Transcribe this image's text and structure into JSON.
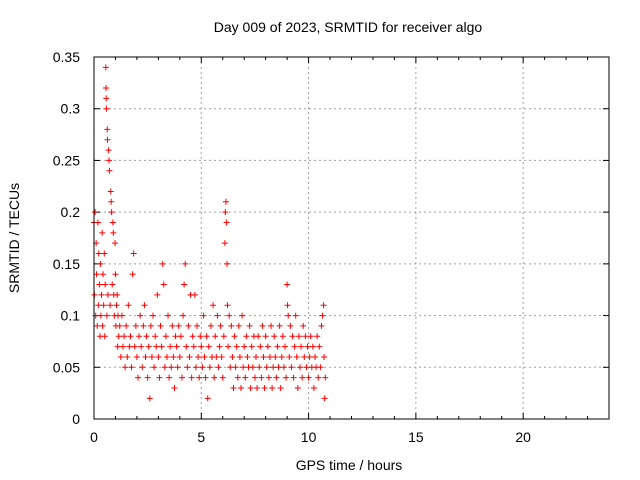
{
  "chart_data": {
    "type": "scatter",
    "title": "Day 009 of 2023, SRMTID for receiver algo",
    "xlabel": "GPS time / hours",
    "ylabel": "SRMTID / TECUs",
    "xlim": [
      0,
      24
    ],
    "ylim": [
      0,
      0.35
    ],
    "x_ticks": [
      0,
      5,
      10,
      15,
      20
    ],
    "y_ticks": [
      0,
      0.05,
      0.1,
      0.15,
      0.2,
      0.25,
      0.3,
      0.35
    ],
    "x_tick_labels": [
      "0",
      "5",
      "10",
      "15",
      "20"
    ],
    "y_tick_labels": [
      "0",
      "0.05",
      "0.1",
      "0.15",
      "0.2",
      "0.25",
      "0.3",
      "0.35"
    ],
    "grid": true,
    "marker": "+",
    "marker_color": "#ff0000",
    "series": [
      {
        "points": [
          [
            0.0,
            0.19
          ],
          [
            0.02,
            0.12
          ],
          [
            0.05,
            0.2
          ],
          [
            0.08,
            0.1
          ],
          [
            0.1,
            0.17
          ],
          [
            0.12,
            0.14
          ],
          [
            0.15,
            0.09
          ],
          [
            0.18,
            0.19
          ],
          [
            0.2,
            0.11
          ],
          [
            0.22,
            0.16
          ],
          [
            0.25,
            0.13
          ],
          [
            0.28,
            0.08
          ],
          [
            0.3,
            0.15
          ],
          [
            0.32,
            0.1
          ],
          [
            0.35,
            0.12
          ],
          [
            0.38,
            0.18
          ],
          [
            0.4,
            0.09
          ],
          [
            0.42,
            0.14
          ],
          [
            0.45,
            0.11
          ],
          [
            0.48,
            0.16
          ],
          [
            0.5,
            0.08
          ],
          [
            0.52,
            0.13
          ],
          [
            0.55,
            0.34
          ],
          [
            0.56,
            0.32
          ],
          [
            0.57,
            0.31
          ],
          [
            0.58,
            0.3
          ],
          [
            0.6,
            0.1
          ],
          [
            0.62,
            0.28
          ],
          [
            0.63,
            0.27
          ],
          [
            0.65,
            0.12
          ],
          [
            0.68,
            0.26
          ],
          [
            0.7,
            0.25
          ],
          [
            0.72,
            0.24
          ],
          [
            0.75,
            0.11
          ],
          [
            0.78,
            0.22
          ],
          [
            0.8,
            0.21
          ],
          [
            0.82,
            0.2
          ],
          [
            0.85,
            0.13
          ],
          [
            0.88,
            0.19
          ],
          [
            0.9,
            0.18
          ],
          [
            0.92,
            0.12
          ],
          [
            0.95,
            0.1
          ],
          [
            0.98,
            0.17
          ],
          [
            1.0,
            0.14
          ],
          [
            1.02,
            0.09
          ],
          [
            1.05,
            0.11
          ],
          [
            1.08,
            0.12
          ],
          [
            1.1,
            0.07
          ],
          [
            1.12,
            0.1
          ],
          [
            1.15,
            0.08
          ],
          [
            1.2,
            0.09
          ],
          [
            1.25,
            0.06
          ],
          [
            1.3,
            0.1
          ],
          [
            1.35,
            0.07
          ],
          [
            1.4,
            0.08
          ],
          [
            1.45,
            0.05
          ],
          [
            1.5,
            0.09
          ],
          [
            1.55,
            0.06
          ],
          [
            1.6,
            0.11
          ],
          [
            1.65,
            0.07
          ],
          [
            1.7,
            0.08
          ],
          [
            1.75,
            0.05
          ],
          [
            1.8,
            0.14
          ],
          [
            1.85,
            0.16
          ],
          [
            1.9,
            0.07
          ],
          [
            1.95,
            0.09
          ],
          [
            2.0,
            0.06
          ],
          [
            2.05,
            0.04
          ],
          [
            2.1,
            0.08
          ],
          [
            2.15,
            0.1
          ],
          [
            2.2,
            0.07
          ],
          [
            2.25,
            0.05
          ],
          [
            2.3,
            0.09
          ],
          [
            2.35,
            0.11
          ],
          [
            2.4,
            0.06
          ],
          [
            2.45,
            0.08
          ],
          [
            2.5,
            0.04
          ],
          [
            2.55,
            0.07
          ],
          [
            2.6,
            0.02
          ],
          [
            2.65,
            0.09
          ],
          [
            2.7,
            0.06
          ],
          [
            2.75,
            0.1
          ],
          [
            2.8,
            0.05
          ],
          [
            2.85,
            0.08
          ],
          [
            2.9,
            0.07
          ],
          [
            2.95,
            0.12
          ],
          [
            3.0,
            0.06
          ],
          [
            3.05,
            0.04
          ],
          [
            3.1,
            0.09
          ],
          [
            3.15,
            0.07
          ],
          [
            3.2,
            0.15
          ],
          [
            3.25,
            0.13
          ],
          [
            3.3,
            0.05
          ],
          [
            3.35,
            0.08
          ],
          [
            3.4,
            0.06
          ],
          [
            3.45,
            0.1
          ],
          [
            3.5,
            0.04
          ],
          [
            3.55,
            0.07
          ],
          [
            3.6,
            0.05
          ],
          [
            3.65,
            0.09
          ],
          [
            3.7,
            0.06
          ],
          [
            3.75,
            0.03
          ],
          [
            3.8,
            0.08
          ],
          [
            3.85,
            0.07
          ],
          [
            3.9,
            0.05
          ],
          [
            3.95,
            0.09
          ],
          [
            4.0,
            0.06
          ],
          [
            4.05,
            0.08
          ],
          [
            4.1,
            0.04
          ],
          [
            4.15,
            0.1
          ],
          [
            4.2,
            0.13
          ],
          [
            4.25,
            0.15
          ],
          [
            4.3,
            0.07
          ],
          [
            4.35,
            0.05
          ],
          [
            4.4,
            0.09
          ],
          [
            4.45,
            0.06
          ],
          [
            4.5,
            0.12
          ],
          [
            4.55,
            0.04
          ],
          [
            4.6,
            0.08
          ],
          [
            4.65,
            0.07
          ],
          [
            4.7,
            0.12
          ],
          [
            4.75,
            0.05
          ],
          [
            4.8,
            0.09
          ],
          [
            4.85,
            0.06
          ],
          [
            4.9,
            0.04
          ],
          [
            4.95,
            0.08
          ],
          [
            5.0,
            0.07
          ],
          [
            5.05,
            0.05
          ],
          [
            5.1,
            0.1
          ],
          [
            5.15,
            0.06
          ],
          [
            5.2,
            0.04
          ],
          [
            5.25,
            0.08
          ],
          [
            5.3,
            0.02
          ],
          [
            5.35,
            0.07
          ],
          [
            5.4,
            0.05
          ],
          [
            5.45,
            0.09
          ],
          [
            5.5,
            0.06
          ],
          [
            5.55,
            0.11
          ],
          [
            5.6,
            0.04
          ],
          [
            5.65,
            0.08
          ],
          [
            5.7,
            0.06
          ],
          [
            5.75,
            0.1
          ],
          [
            5.8,
            0.05
          ],
          [
            5.85,
            0.07
          ],
          [
            5.9,
            0.09
          ],
          [
            5.95,
            0.06
          ],
          [
            6.0,
            0.04
          ],
          [
            6.05,
            0.08
          ],
          [
            6.1,
            0.17
          ],
          [
            6.12,
            0.2
          ],
          [
            6.15,
            0.21
          ],
          [
            6.18,
            0.19
          ],
          [
            6.2,
            0.15
          ],
          [
            6.22,
            0.11
          ],
          [
            6.25,
            0.07
          ],
          [
            6.3,
            0.1
          ],
          [
            6.35,
            0.05
          ],
          [
            6.4,
            0.09
          ],
          [
            6.45,
            0.06
          ],
          [
            6.5,
            0.03
          ],
          [
            6.55,
            0.08
          ],
          [
            6.6,
            0.05
          ],
          [
            6.65,
            0.07
          ],
          [
            6.7,
            0.04
          ],
          [
            6.75,
            0.09
          ],
          [
            6.8,
            0.06
          ],
          [
            6.85,
            0.03
          ],
          [
            6.9,
            0.1
          ],
          [
            6.95,
            0.05
          ],
          [
            7.0,
            0.07
          ],
          [
            7.05,
            0.04
          ],
          [
            7.1,
            0.08
          ],
          [
            7.15,
            0.06
          ],
          [
            7.2,
            0.05
          ],
          [
            7.25,
            0.09
          ],
          [
            7.3,
            0.03
          ],
          [
            7.35,
            0.07
          ],
          [
            7.4,
            0.05
          ],
          [
            7.45,
            0.08
          ],
          [
            7.5,
            0.04
          ],
          [
            7.55,
            0.06
          ],
          [
            7.6,
            0.03
          ],
          [
            7.65,
            0.08
          ],
          [
            7.7,
            0.05
          ],
          [
            7.75,
            0.07
          ],
          [
            7.8,
            0.04
          ],
          [
            7.85,
            0.09
          ],
          [
            7.9,
            0.06
          ],
          [
            7.95,
            0.03
          ],
          [
            8.0,
            0.08
          ],
          [
            8.05,
            0.05
          ],
          [
            8.1,
            0.07
          ],
          [
            8.15,
            0.04
          ],
          [
            8.2,
            0.06
          ],
          [
            8.25,
            0.09
          ],
          [
            8.3,
            0.03
          ],
          [
            8.35,
            0.05
          ],
          [
            8.4,
            0.08
          ],
          [
            8.45,
            0.06
          ],
          [
            8.5,
            0.04
          ],
          [
            8.55,
            0.07
          ],
          [
            8.6,
            0.05
          ],
          [
            8.65,
            0.09
          ],
          [
            8.7,
            0.03
          ],
          [
            8.75,
            0.06
          ],
          [
            8.8,
            0.08
          ],
          [
            8.85,
            0.05
          ],
          [
            8.9,
            0.07
          ],
          [
            8.95,
            0.04
          ],
          [
            9.0,
            0.13
          ],
          [
            9.02,
            0.11
          ],
          [
            9.05,
            0.1
          ],
          [
            9.1,
            0.06
          ],
          [
            9.15,
            0.09
          ],
          [
            9.2,
            0.05
          ],
          [
            9.25,
            0.08
          ],
          [
            9.3,
            0.04
          ],
          [
            9.35,
            0.07
          ],
          [
            9.4,
            0.1
          ],
          [
            9.45,
            0.06
          ],
          [
            9.5,
            0.03
          ],
          [
            9.55,
            0.08
          ],
          [
            9.6,
            0.05
          ],
          [
            9.65,
            0.07
          ],
          [
            9.7,
            0.04
          ],
          [
            9.75,
            0.09
          ],
          [
            9.8,
            0.06
          ],
          [
            9.85,
            0.08
          ],
          [
            9.9,
            0.05
          ],
          [
            9.95,
            0.07
          ],
          [
            10.0,
            0.04
          ],
          [
            10.05,
            0.06
          ],
          [
            10.1,
            0.08
          ],
          [
            10.15,
            0.05
          ],
          [
            10.2,
            0.07
          ],
          [
            10.25,
            0.03
          ],
          [
            10.3,
            0.06
          ],
          [
            10.35,
            0.05
          ],
          [
            10.4,
            0.08
          ],
          [
            10.45,
            0.04
          ],
          [
            10.5,
            0.07
          ],
          [
            10.55,
            0.05
          ],
          [
            10.6,
            0.09
          ],
          [
            10.65,
            0.1
          ],
          [
            10.7,
            0.11
          ],
          [
            10.72,
            0.06
          ],
          [
            10.75,
            0.02
          ],
          [
            10.78,
            0.04
          ]
        ]
      }
    ]
  }
}
